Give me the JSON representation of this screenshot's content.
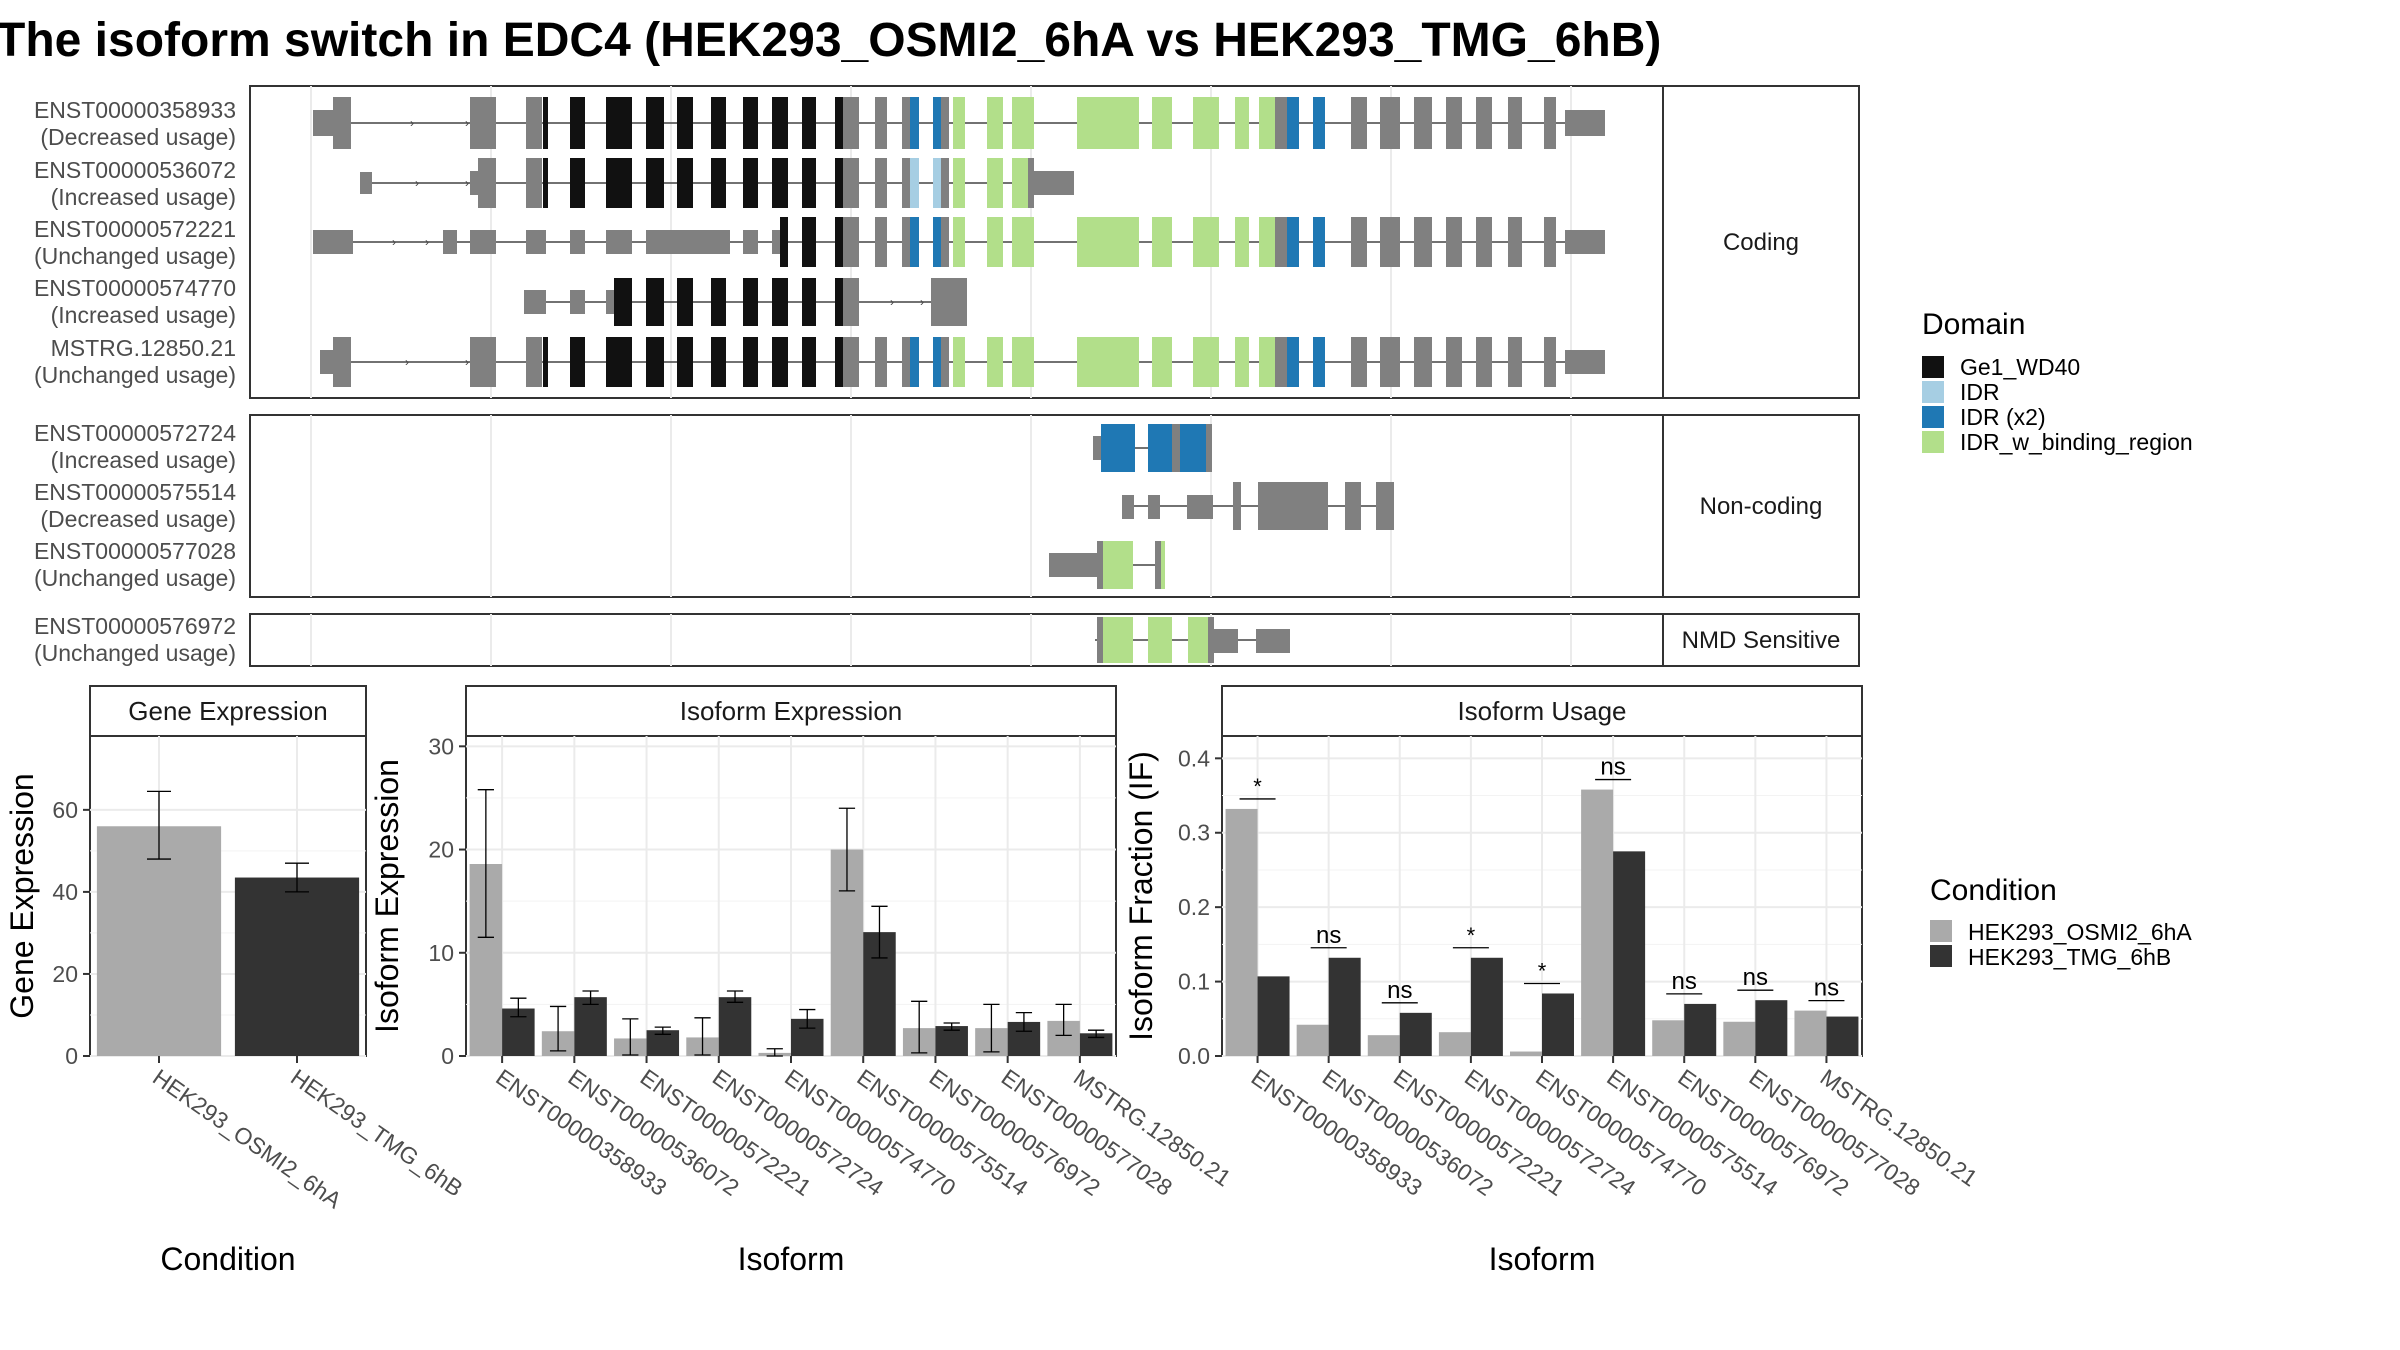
{
  "title": "The isoform switch in EDC4 (HEK293_OSMI2_6hA vs HEK293_TMG_6hB)",
  "colors": {
    "domain_Ge1_WD40": "#111111",
    "domain_IDR": "#a6cee3",
    "domain_IDR_x2": "#1f78b4",
    "domain_IDR_w_binding_region": "#b2df8a",
    "exon_plain": "#808080",
    "cond_A": "#aaaaaa",
    "cond_B": "#333333",
    "panel_strip": "#ffffff",
    "grid": "#ebebeb"
  },
  "structure": {
    "groups": [
      {
        "label": "Coding",
        "transcripts": [
          {
            "id": "ENST00000358933",
            "usage": "(Decreased usage)"
          },
          {
            "id": "ENST00000536072",
            "usage": "(Increased usage)"
          },
          {
            "id": "ENST00000572221",
            "usage": "(Unchanged usage)"
          },
          {
            "id": "ENST00000574770",
            "usage": "(Increased usage)"
          },
          {
            "id": "MSTRG.12850.21",
            "usage": "(Unchanged usage)"
          }
        ]
      },
      {
        "label": "Non-coding",
        "transcripts": [
          {
            "id": "ENST00000572724",
            "usage": "(Increased usage)"
          },
          {
            "id": "ENST00000575514",
            "usage": "(Decreased usage)"
          },
          {
            "id": "ENST00000577028",
            "usage": "(Unchanged usage)"
          }
        ]
      },
      {
        "label": "NMD Sensitive",
        "transcripts": [
          {
            "id": "ENST00000576972",
            "usage": "(Unchanged usage)"
          }
        ]
      }
    ]
  },
  "legend_domain": {
    "title": "Domain",
    "items": [
      {
        "label": "Ge1_WD40",
        "color": "#111111"
      },
      {
        "label": "IDR",
        "color": "#a6cee3"
      },
      {
        "label": "IDR (x2)",
        "color": "#1f78b4"
      },
      {
        "label": "IDR_w_binding_region",
        "color": "#b2df8a"
      }
    ]
  },
  "legend_condition": {
    "title": "Condition",
    "items": [
      {
        "label": "HEK293_OSMI2_6hA",
        "color": "#aaaaaa"
      },
      {
        "label": "HEK293_TMG_6hB",
        "color": "#333333"
      }
    ]
  },
  "chart_data": [
    {
      "type": "bar",
      "strip": "Gene Expression",
      "xlabel": "Condition",
      "ylabel": "Gene Expression",
      "ylim": [
        0,
        78
      ],
      "yticks": [
        0,
        20,
        40,
        60
      ],
      "categories": [
        "HEK293_OSMI2_6hA",
        "HEK293_TMG_6hB"
      ],
      "values": [
        56,
        43.5
      ],
      "errors": [
        [
          48,
          64.5
        ],
        [
          40,
          47
        ]
      ]
    },
    {
      "type": "bar",
      "strip": "Isoform Expression",
      "xlabel": "Isoform",
      "ylabel": "Isoform Expression",
      "ylim": [
        0,
        31
      ],
      "yticks": [
        0,
        10,
        20,
        30
      ],
      "categories": [
        "ENST00000358933",
        "ENST00000536072",
        "ENST00000572221",
        "ENST00000572724",
        "ENST00000574770",
        "ENST00000575514",
        "ENST00000576972",
        "ENST00000577028",
        "MSTRG.12850.21"
      ],
      "series": [
        {
          "name": "HEK293_OSMI2_6hA",
          "values": [
            18.6,
            2.4,
            1.7,
            1.8,
            0.3,
            20.0,
            2.7,
            2.7,
            3.4
          ],
          "errors": [
            [
              11.5,
              25.8
            ],
            [
              0.5,
              4.8
            ],
            [
              0.1,
              3.6
            ],
            [
              0.1,
              3.7
            ],
            [
              0.0,
              0.7
            ],
            [
              16.0,
              24.0
            ],
            [
              0.3,
              5.3
            ],
            [
              0.4,
              5.0
            ],
            [
              2.0,
              5.0
            ]
          ]
        },
        {
          "name": "HEK293_TMG_6hB",
          "values": [
            4.6,
            5.7,
            2.5,
            5.7,
            3.6,
            12.0,
            2.9,
            3.3,
            2.2
          ],
          "errors": [
            [
              3.8,
              5.6
            ],
            [
              5.0,
              6.3
            ],
            [
              2.1,
              2.8
            ],
            [
              5.2,
              6.3
            ],
            [
              2.7,
              4.5
            ],
            [
              9.5,
              14.5
            ],
            [
              2.5,
              3.2
            ],
            [
              2.4,
              4.2
            ],
            [
              1.8,
              2.5
            ]
          ]
        }
      ]
    },
    {
      "type": "bar",
      "strip": "Isoform Usage",
      "xlabel": "Isoform",
      "ylabel": "Isoform Fraction (IF)",
      "ylim": [
        0,
        0.43
      ],
      "yticks": [
        0.0,
        0.1,
        0.2,
        0.3,
        0.4
      ],
      "ytick_labels": [
        "0.0",
        "0.1",
        "0.2",
        "0.3",
        "0.4"
      ],
      "categories": [
        "ENST00000358933",
        "ENST00000536072",
        "ENST00000572221",
        "ENST00000572724",
        "ENST00000574770",
        "ENST00000575514",
        "ENST00000576972",
        "ENST00000577028",
        "MSTRG.12850.21"
      ],
      "series": [
        {
          "name": "HEK293_OSMI2_6hA",
          "values": [
            0.332,
            0.042,
            0.028,
            0.032,
            0.006,
            0.358,
            0.048,
            0.046,
            0.061
          ]
        },
        {
          "name": "HEK293_TMG_6hB",
          "values": [
            0.107,
            0.132,
            0.058,
            0.132,
            0.084,
            0.275,
            0.07,
            0.075,
            0.053
          ]
        }
      ],
      "significance": [
        "*",
        "ns",
        "ns",
        "*",
        "*",
        "ns",
        "ns",
        "ns",
        "ns"
      ]
    }
  ]
}
